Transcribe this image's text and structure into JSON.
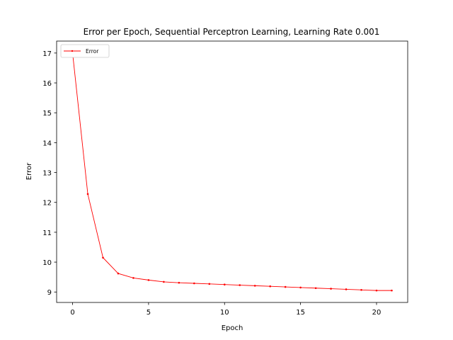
{
  "chart_data": {
    "type": "line",
    "title": "Error per Epoch, Sequential Perceptron Learning, Learning Rate 0.001",
    "xlabel": "Epoch",
    "ylabel": "Error",
    "xlim": [
      -1.05,
      22.05
    ],
    "ylim": [
      8.65,
      17.4
    ],
    "xticks": [
      0,
      5,
      10,
      15,
      20
    ],
    "yticks": [
      9,
      10,
      11,
      12,
      13,
      14,
      15,
      16,
      17
    ],
    "grid": false,
    "legend_position": "upper left",
    "series": [
      {
        "name": "Error",
        "color": "#ff0000",
        "marker": "point",
        "x": [
          0,
          1,
          2,
          3,
          4,
          5,
          6,
          7,
          8,
          9,
          10,
          11,
          12,
          13,
          14,
          15,
          16,
          17,
          18,
          19,
          20,
          21
        ],
        "y": [
          17.0,
          12.28,
          10.15,
          9.62,
          9.47,
          9.4,
          9.34,
          9.31,
          9.29,
          9.27,
          9.25,
          9.23,
          9.21,
          9.19,
          9.17,
          9.15,
          9.13,
          9.11,
          9.09,
          9.07,
          9.05,
          9.05
        ]
      }
    ]
  }
}
